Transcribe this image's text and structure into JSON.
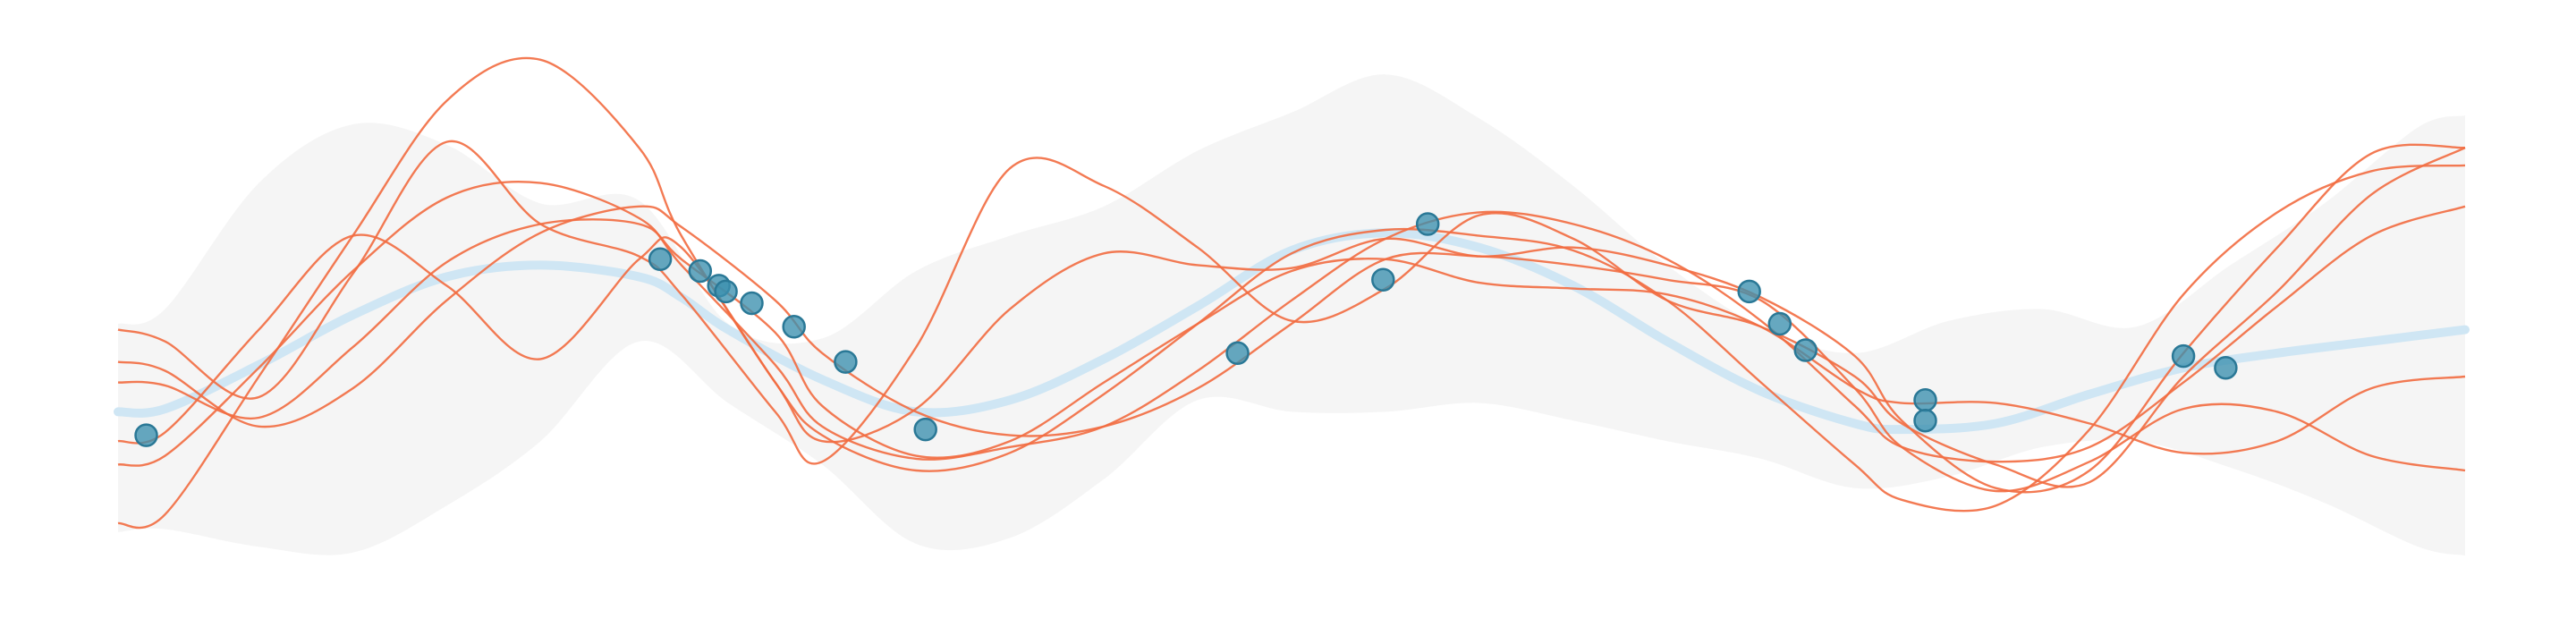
{
  "chart_data": {
    "type": "line",
    "title": "",
    "xlabel": "",
    "ylabel": "",
    "xlim": [
      0,
      1
    ],
    "ylim": [
      -1,
      1
    ],
    "grid": false,
    "legend": "none",
    "colors": {
      "band": "#f2f2f2",
      "mean": "#cfe6f4",
      "samples": "#f26b40",
      "points": "#3b8fae",
      "points_edge": "#2a7896"
    },
    "confidence_band": {
      "x": [
        0.0,
        0.02,
        0.06,
        0.1,
        0.14,
        0.18,
        0.222,
        0.26,
        0.3,
        0.34,
        0.38,
        0.42,
        0.46,
        0.5,
        0.54,
        0.58,
        0.62,
        0.66,
        0.7,
        0.74,
        0.78,
        0.82,
        0.86,
        0.9,
        0.94,
        0.98,
        1.0
      ],
      "upper": [
        0.0,
        0.05,
        0.48,
        0.68,
        0.61,
        0.41,
        0.42,
        0.0,
        -0.05,
        0.18,
        0.3,
        0.4,
        0.59,
        0.72,
        0.85,
        0.7,
        0.47,
        0.2,
        -0.01,
        -0.1,
        0.01,
        0.05,
        -0.01,
        0.2,
        0.41,
        0.67,
        0.71
      ],
      "lower": [
        -0.71,
        -0.7,
        -0.76,
        -0.78,
        -0.62,
        -0.4,
        -0.06,
        -0.27,
        -0.48,
        -0.75,
        -0.73,
        -0.53,
        -0.26,
        -0.3,
        -0.3,
        -0.27,
        -0.33,
        -0.4,
        -0.46,
        -0.56,
        -0.52,
        -0.42,
        -0.4,
        -0.49,
        -0.61,
        -0.76,
        -0.79
      ]
    },
    "mean": {
      "x": [
        0.0,
        0.02,
        0.06,
        0.1,
        0.14,
        0.18,
        0.222,
        0.24,
        0.26,
        0.3,
        0.34,
        0.38,
        0.42,
        0.46,
        0.5,
        0.54,
        0.58,
        0.62,
        0.66,
        0.7,
        0.74,
        0.76,
        0.8,
        0.84,
        0.88,
        0.92,
        0.96,
        1.0
      ],
      "y": [
        -0.3,
        -0.29,
        -0.14,
        0.03,
        0.16,
        0.2,
        0.16,
        0.09,
        -0.02,
        -0.19,
        -0.3,
        -0.26,
        -0.12,
        0.06,
        0.25,
        0.31,
        0.26,
        0.13,
        -0.06,
        -0.23,
        -0.34,
        -0.36,
        -0.34,
        -0.24,
        -0.15,
        -0.1,
        -0.06,
        -0.02
      ]
    },
    "samples": [
      {
        "x": [
          0.0,
          0.02,
          0.06,
          0.1,
          0.14,
          0.18,
          0.222,
          0.24,
          0.28,
          0.3,
          0.34,
          0.38,
          0.42,
          0.46,
          0.5,
          0.54,
          0.58,
          0.62,
          0.66,
          0.7,
          0.74,
          0.76,
          0.8,
          0.84,
          0.88,
          0.92,
          0.96,
          1.0
        ],
        "y": [
          -0.68,
          -0.65,
          -0.18,
          0.3,
          0.76,
          0.9,
          0.6,
          0.3,
          -0.2,
          -0.38,
          -0.5,
          -0.44,
          -0.24,
          0.0,
          0.24,
          0.32,
          0.3,
          0.25,
          0.08,
          -0.2,
          -0.48,
          -0.6,
          -0.62,
          -0.36,
          0.1,
          0.38,
          0.52,
          0.54
        ]
      },
      {
        "x": [
          0.0,
          0.02,
          0.06,
          0.1,
          0.14,
          0.18,
          0.222,
          0.24,
          0.28,
          0.3,
          0.34,
          0.38,
          0.42,
          0.46,
          0.5,
          0.54,
          0.58,
          0.62,
          0.66,
          0.7,
          0.74,
          0.76,
          0.8,
          0.84,
          0.88,
          0.92,
          0.96,
          1.0
        ],
        "y": [
          -0.48,
          -0.45,
          -0.15,
          0.18,
          0.43,
          0.48,
          0.36,
          0.2,
          -0.14,
          -0.35,
          -0.46,
          -0.42,
          -0.35,
          -0.16,
          0.08,
          0.29,
          0.38,
          0.34,
          0.22,
          0.01,
          -0.28,
          -0.42,
          -0.47,
          -0.42,
          -0.2,
          0.06,
          0.3,
          0.4
        ]
      },
      {
        "x": [
          0.0,
          0.02,
          0.06,
          0.1,
          0.14,
          0.18,
          0.222,
          0.24,
          0.28,
          0.3,
          0.34,
          0.38,
          0.42,
          0.46,
          0.5,
          0.54,
          0.58,
          0.62,
          0.66,
          0.7,
          0.74,
          0.76,
          0.8,
          0.84,
          0.88,
          0.92,
          0.96,
          1.0
        ],
        "y": [
          -0.13,
          -0.16,
          -0.35,
          -0.22,
          0.08,
          0.31,
          0.4,
          0.33,
          0.08,
          -0.1,
          -0.3,
          -0.38,
          -0.35,
          -0.22,
          0.0,
          0.22,
          0.23,
          0.2,
          0.15,
          0.08,
          -0.22,
          -0.42,
          -0.57,
          -0.47,
          -0.29,
          -0.3,
          -0.45,
          -0.5
        ]
      },
      {
        "x": [
          0.0,
          0.02,
          0.06,
          0.1,
          0.14,
          0.18,
          0.222,
          0.24,
          0.28,
          0.3,
          0.34,
          0.38,
          0.42,
          0.46,
          0.5,
          0.54,
          0.58,
          0.62,
          0.66,
          0.7,
          0.74,
          0.76,
          0.8,
          0.84,
          0.88,
          0.92,
          0.96,
          1.0
        ],
        "y": [
          -0.2,
          -0.21,
          -0.32,
          -0.08,
          0.21,
          0.34,
          0.34,
          0.22,
          -0.03,
          -0.28,
          -0.45,
          -0.4,
          -0.2,
          0.0,
          0.18,
          0.22,
          0.14,
          0.12,
          0.1,
          -0.01,
          -0.22,
          -0.27,
          -0.27,
          -0.34,
          -0.44,
          -0.4,
          -0.22,
          -0.18
        ]
      },
      {
        "x": [
          0.0,
          0.02,
          0.06,
          0.1,
          0.14,
          0.18,
          0.222,
          0.24,
          0.28,
          0.3,
          0.34,
          0.38,
          0.42,
          0.46,
          0.5,
          0.54,
          0.58,
          0.62,
          0.66,
          0.7,
          0.74,
          0.76,
          0.8,
          0.84,
          0.88,
          0.92,
          0.96,
          1.0
        ],
        "y": [
          -0.02,
          -0.06,
          -0.25,
          0.17,
          0.62,
          0.34,
          0.23,
          0.1,
          -0.3,
          -0.47,
          -0.08,
          0.53,
          0.47,
          0.26,
          0.01,
          0.12,
          0.37,
          0.29,
          0.08,
          -0.01,
          -0.18,
          -0.34,
          -0.48,
          -0.54,
          -0.18,
          0.11,
          0.44,
          0.6
        ]
      },
      {
        "x": [
          0.0,
          0.02,
          0.06,
          0.1,
          0.14,
          0.18,
          0.222,
          0.24,
          0.28,
          0.3,
          0.34,
          0.38,
          0.42,
          0.46,
          0.5,
          0.54,
          0.58,
          0.62,
          0.66,
          0.7,
          0.74,
          0.76,
          0.8,
          0.84,
          0.88,
          0.92,
          0.96,
          1.0
        ],
        "y": [
          -0.4,
          -0.37,
          -0.02,
          0.3,
          0.13,
          -0.12,
          0.22,
          0.26,
          -0.2,
          -0.4,
          -0.29,
          0.05,
          0.24,
          0.2,
          0.19,
          0.29,
          0.23,
          0.26,
          0.2,
          0.09,
          -0.11,
          -0.33,
          -0.56,
          -0.5,
          -0.1,
          0.26,
          0.58,
          0.6
        ]
      }
    ],
    "observations": [
      {
        "x": 0.012,
        "y": -0.38
      },
      {
        "x": 0.231,
        "y": 0.22
      },
      {
        "x": 0.248,
        "y": 0.18
      },
      {
        "x": 0.256,
        "y": 0.13
      },
      {
        "x": 0.259,
        "y": 0.11
      },
      {
        "x": 0.27,
        "y": 0.07
      },
      {
        "x": 0.288,
        "y": -0.01
      },
      {
        "x": 0.31,
        "y": -0.13
      },
      {
        "x": 0.344,
        "y": -0.36
      },
      {
        "x": 0.477,
        "y": -0.1
      },
      {
        "x": 0.539,
        "y": 0.15
      },
      {
        "x": 0.558,
        "y": 0.34
      },
      {
        "x": 0.695,
        "y": 0.11
      },
      {
        "x": 0.708,
        "y": 0.0
      },
      {
        "x": 0.719,
        "y": -0.09
      },
      {
        "x": 0.77,
        "y": -0.26
      },
      {
        "x": 0.77,
        "y": -0.33
      },
      {
        "x": 0.88,
        "y": -0.11
      },
      {
        "x": 0.898,
        "y": -0.15
      }
    ]
  }
}
